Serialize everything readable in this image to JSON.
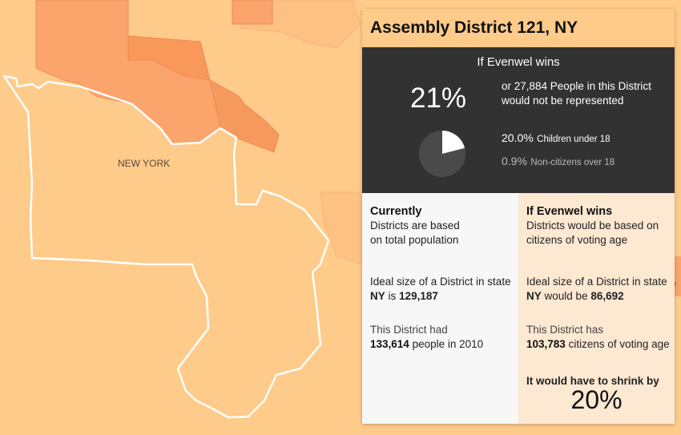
{
  "map": {
    "state_label": "NEW YORK",
    "edge_label": "y",
    "colors": {
      "base": "#fecb8a",
      "district_light": "#fdbd7f",
      "district_mid": "#fba46b",
      "district_dark": "#f6995d",
      "border": "#ffffff"
    }
  },
  "panel": {
    "title": "Assembly District 121, NY",
    "summary": {
      "heading": "If Evenwel wins",
      "percent": "21%",
      "pie_fraction": 0.21,
      "people_text": "or 27,884 People in this District would not be represented",
      "children_pct": "20.0%",
      "children_label": "Children under 18",
      "noncitizens_pct": "0.9%",
      "noncitizens_label": "Non-citizens over 18"
    },
    "current": {
      "title": "Currently",
      "basis": "Districts are based on total population",
      "ideal_size_prefix": "Ideal size of a District in state",
      "state": "NY",
      "is_word": "is",
      "ideal_size": "129,187",
      "had_prefix": "This District had",
      "had_value": "133,614",
      "had_suffix": "people in 2010"
    },
    "evenwel": {
      "title": "If Evenwel wins",
      "basis": "Districts would be based on citizens of voting age",
      "ideal_size_prefix": "Ideal size of a District in state",
      "state": "NY",
      "would_be_word": "would be",
      "ideal_size": "86,692",
      "has_prefix": "This District has",
      "has_value": "103,783",
      "has_suffix": "citizens of voting age",
      "shrink_label": "It would have to shrink by",
      "shrink_pct": "20%"
    }
  }
}
